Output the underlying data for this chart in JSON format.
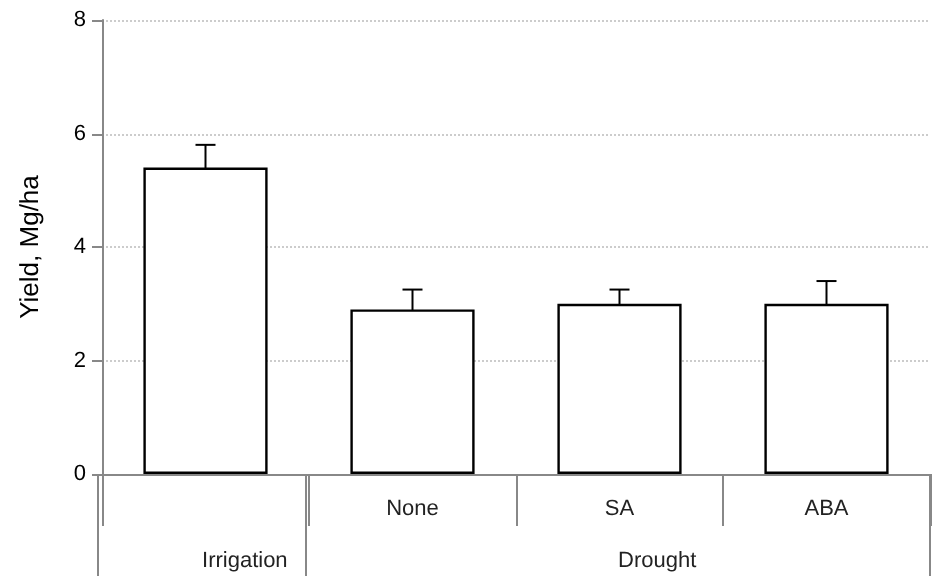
{
  "chart_data": {
    "type": "bar",
    "ylabel": "Yield, Mg/ha",
    "categories": [
      null,
      "None",
      "SA",
      "ABA"
    ],
    "values": [
      5.4,
      2.9,
      3.0,
      3.0
    ],
    "errors": [
      0.4,
      0.35,
      0.25,
      0.4
    ],
    "color": "#ffffff",
    "ylim": [
      0,
      8
    ],
    "yticks": [
      0,
      2,
      4,
      6,
      8
    ],
    "grid": "y",
    "annotations": [
      "Irrigation",
      "Drought"
    ]
  }
}
